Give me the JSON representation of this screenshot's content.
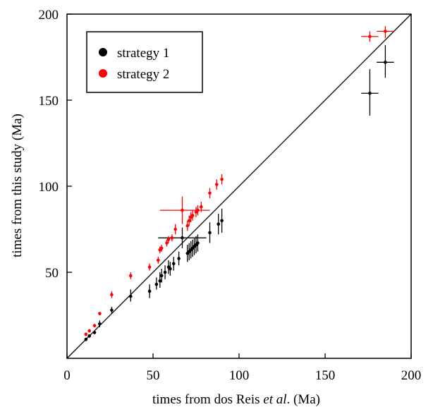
{
  "chart_data": {
    "type": "scatter",
    "xlabel": "times from dos Reis et al. (Ma)",
    "xlabel_parts": {
      "prefix": "times from dos Reis ",
      "italic": "et al",
      "suffix": ". (Ma)"
    },
    "ylabel": "times from this study (Ma)",
    "xlim": [
      0,
      200
    ],
    "ylim": [
      0,
      200
    ],
    "x_ticks": [
      0,
      50,
      100,
      150,
      200
    ],
    "y_ticks": [
      50,
      100,
      150,
      200
    ],
    "x_tick_labels": [
      "0",
      "50",
      "100",
      "150",
      "200"
    ],
    "y_tick_labels": [
      "50",
      "100",
      "150",
      "200"
    ],
    "grid": false,
    "reference_line": "y = x",
    "legend_position": "top-left",
    "series": [
      {
        "name": "strategy 1",
        "color": "#000000",
        "points": [
          {
            "x": 11,
            "y": 11,
            "ylo": 10,
            "yhi": 12
          },
          {
            "x": 13,
            "y": 13,
            "ylo": 12,
            "yhi": 14
          },
          {
            "x": 16,
            "y": 15,
            "ylo": 14,
            "yhi": 16
          },
          {
            "x": 19,
            "y": 20,
            "ylo": 18,
            "yhi": 22
          },
          {
            "x": 26,
            "y": 28,
            "ylo": 26,
            "yhi": 30
          },
          {
            "x": 37,
            "y": 36,
            "ylo": 33,
            "yhi": 40
          },
          {
            "x": 48,
            "y": 39,
            "ylo": 35,
            "yhi": 43
          },
          {
            "x": 52,
            "y": 43,
            "ylo": 40,
            "yhi": 47
          },
          {
            "x": 54,
            "y": 45,
            "ylo": 41,
            "yhi": 50
          },
          {
            "x": 55,
            "y": 48,
            "ylo": 44,
            "yhi": 52
          },
          {
            "x": 57,
            "y": 50,
            "ylo": 46,
            "yhi": 54
          },
          {
            "x": 59,
            "y": 53,
            "ylo": 49,
            "yhi": 57
          },
          {
            "x": 60,
            "y": 52,
            "ylo": 48,
            "yhi": 56
          },
          {
            "x": 62,
            "y": 55,
            "ylo": 51,
            "yhi": 59
          },
          {
            "x": 65,
            "y": 58,
            "ylo": 54,
            "yhi": 62
          },
          {
            "x": 67,
            "y": 70,
            "ylo": 64,
            "yhi": 76,
            "xlo": 53,
            "xhi": 81
          },
          {
            "x": 70,
            "y": 61,
            "ylo": 56,
            "yhi": 66
          },
          {
            "x": 71,
            "y": 62,
            "ylo": 57,
            "yhi": 67
          },
          {
            "x": 72,
            "y": 63,
            "ylo": 58,
            "yhi": 68
          },
          {
            "x": 73,
            "y": 64,
            "ylo": 59,
            "yhi": 69
          },
          {
            "x": 74,
            "y": 65,
            "ylo": 60,
            "yhi": 70
          },
          {
            "x": 75,
            "y": 66,
            "ylo": 61,
            "yhi": 71
          },
          {
            "x": 76,
            "y": 67,
            "ylo": 62,
            "yhi": 72
          },
          {
            "x": 83,
            "y": 73,
            "ylo": 67,
            "yhi": 79
          },
          {
            "x": 88,
            "y": 78,
            "ylo": 72,
            "yhi": 84
          },
          {
            "x": 90,
            "y": 80,
            "ylo": 73,
            "yhi": 87
          },
          {
            "x": 176,
            "y": 154,
            "ylo": 141,
            "yhi": 168,
            "xlo": 171,
            "xhi": 181
          },
          {
            "x": 185,
            "y": 172,
            "ylo": 163,
            "yhi": 182,
            "xlo": 180,
            "xhi": 190
          }
        ]
      },
      {
        "name": "strategy 2",
        "color": "#ff0000",
        "points": [
          {
            "x": 11,
            "y": 14,
            "ylo": 13,
            "yhi": 15
          },
          {
            "x": 13,
            "y": 16,
            "ylo": 15,
            "yhi": 17
          },
          {
            "x": 16,
            "y": 19,
            "ylo": 18,
            "yhi": 20
          },
          {
            "x": 19,
            "y": 26,
            "ylo": 25,
            "yhi": 27
          },
          {
            "x": 26,
            "y": 37,
            "ylo": 35,
            "yhi": 39
          },
          {
            "x": 37,
            "y": 48,
            "ylo": 46,
            "yhi": 50
          },
          {
            "x": 48,
            "y": 53,
            "ylo": 51,
            "yhi": 55
          },
          {
            "x": 53,
            "y": 57,
            "ylo": 55,
            "yhi": 59
          },
          {
            "x": 54,
            "y": 63,
            "ylo": 61,
            "yhi": 65
          },
          {
            "x": 55,
            "y": 64,
            "ylo": 62,
            "yhi": 66
          },
          {
            "x": 58,
            "y": 67,
            "ylo": 65,
            "yhi": 69
          },
          {
            "x": 59,
            "y": 69,
            "ylo": 67,
            "yhi": 71
          },
          {
            "x": 61,
            "y": 70,
            "ylo": 68,
            "yhi": 72
          },
          {
            "x": 63,
            "y": 75,
            "ylo": 72,
            "yhi": 78
          },
          {
            "x": 67,
            "y": 86,
            "ylo": 78,
            "yhi": 94,
            "xlo": 54,
            "xhi": 83
          },
          {
            "x": 70,
            "y": 77,
            "ylo": 74,
            "yhi": 80
          },
          {
            "x": 71,
            "y": 80,
            "ylo": 77,
            "yhi": 83
          },
          {
            "x": 72,
            "y": 82,
            "ylo": 79,
            "yhi": 85
          },
          {
            "x": 73,
            "y": 83,
            "ylo": 80,
            "yhi": 86
          },
          {
            "x": 75,
            "y": 85,
            "ylo": 82,
            "yhi": 88
          },
          {
            "x": 76,
            "y": 86,
            "ylo": 83,
            "yhi": 89
          },
          {
            "x": 78,
            "y": 88,
            "ylo": 85,
            "yhi": 91
          },
          {
            "x": 83,
            "y": 96,
            "ylo": 93,
            "yhi": 99
          },
          {
            "x": 87,
            "y": 101,
            "ylo": 98,
            "yhi": 104
          },
          {
            "x": 90,
            "y": 104,
            "ylo": 101,
            "yhi": 107
          },
          {
            "x": 176,
            "y": 187,
            "ylo": 184,
            "yhi": 190,
            "xlo": 171,
            "xhi": 181
          },
          {
            "x": 185,
            "y": 190,
            "ylo": 186,
            "yhi": 193,
            "xlo": 180,
            "xhi": 190
          }
        ]
      }
    ]
  }
}
